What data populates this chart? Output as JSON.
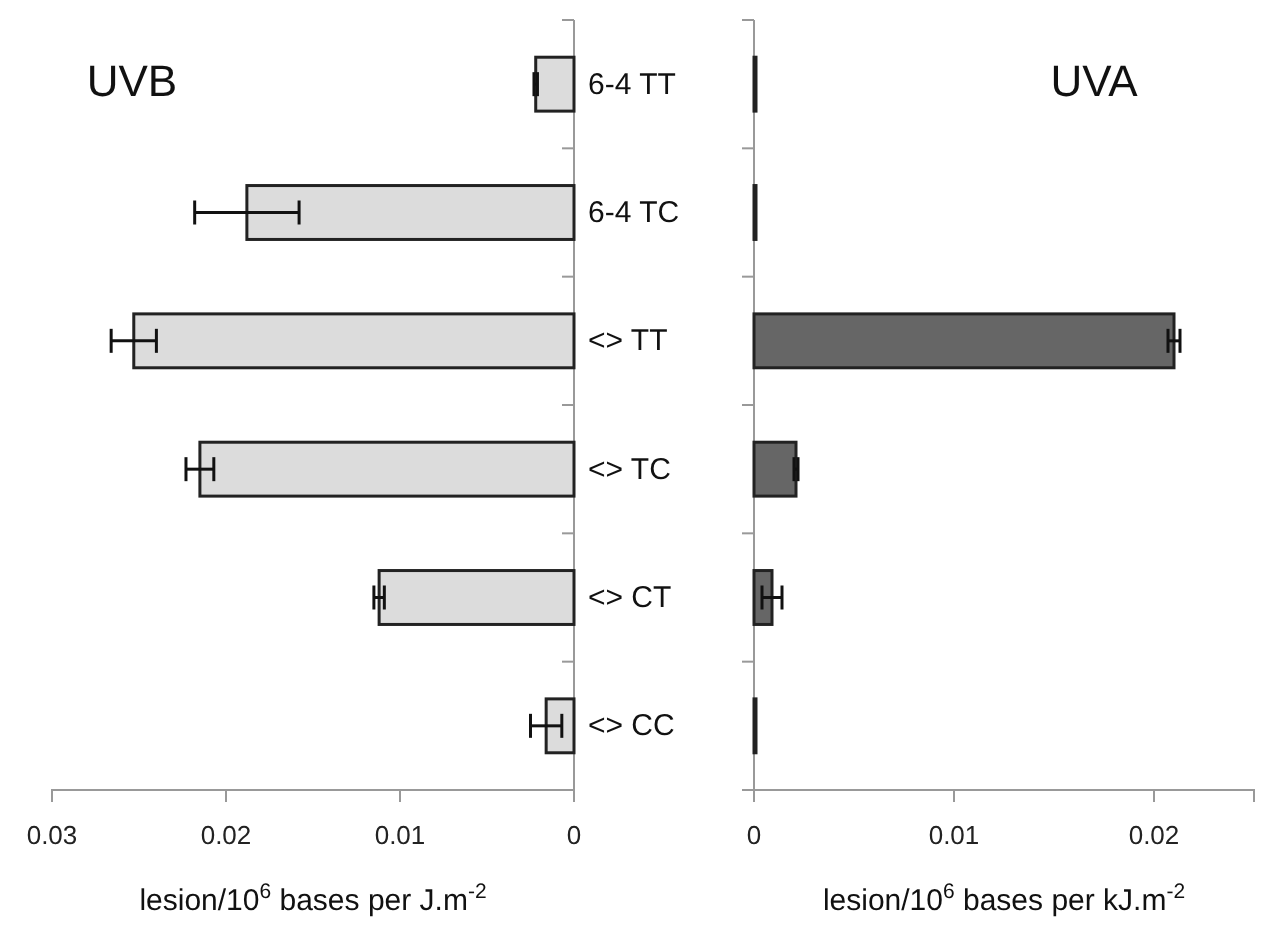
{
  "chart_data": [
    {
      "type": "bar",
      "orientation": "horizontal",
      "title": "UVB",
      "xlabel": "lesion/10$^{6}$ bases per J.m$^{-2}$",
      "categories": [
        "6-4 TT",
        "6-4 TC",
        "<> TT",
        "<> TC",
        "<> CT",
        "<> CC"
      ],
      "series": [
        {
          "color": "#dcdcdc",
          "values": [
            0.0022,
            0.0188,
            0.0253,
            0.0215,
            0.0112,
            0.0016
          ],
          "errors": [
            0.0001,
            0.003,
            0.0013,
            0.0008,
            0.0003,
            0.0009
          ]
        }
      ],
      "xlim": [
        0.03,
        0
      ],
      "xticks": [
        0.03,
        0.02,
        0.01,
        0
      ],
      "grid": false
    },
    {
      "type": "bar",
      "orientation": "horizontal",
      "title": "UVA",
      "xlabel": "lesion/10$^{6}$ bases per kJ.m$^{-2}$",
      "categories": [
        null,
        null,
        null,
        null,
        null,
        null
      ],
      "series": [
        {
          "color": "#666666",
          "values": [
            0.0001,
            0.0001,
            0.021,
            0.0021,
            0.0009,
            0.0001
          ],
          "errors": [
            null,
            null,
            0.0003,
            0.0001,
            0.0005,
            null
          ]
        }
      ],
      "xlim": [
        0,
        0.025
      ],
      "xticks": [
        0,
        0.01,
        0.02
      ],
      "tick_labels": "x",
      "grid": false
    }
  ]
}
